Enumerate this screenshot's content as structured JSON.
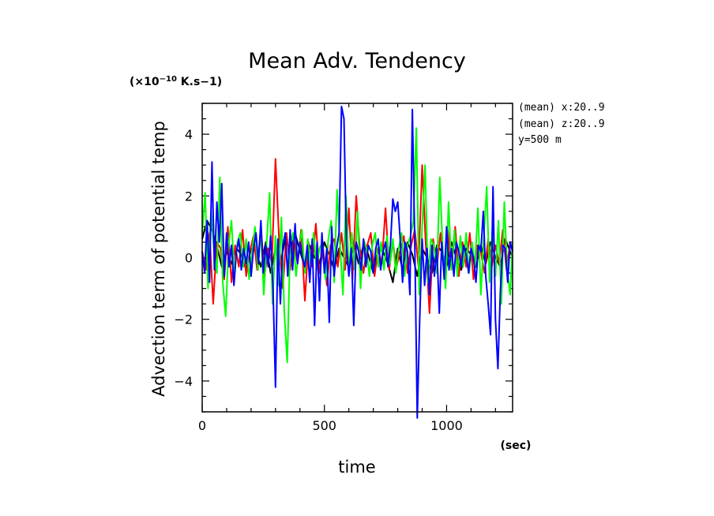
{
  "chart_data": {
    "type": "line",
    "title": "Mean Adv. Tendency",
    "scale_label": "(×10",
    "scale_exp": "−10",
    "scale_unit": " K.s−1)",
    "xlabel": "time",
    "xunit": "(sec)",
    "ylabel": "Advection term of potential temp",
    "info": [
      "(mean) x:20..9",
      "(mean) z:20..9",
      "y=500 m"
    ],
    "xlim": [
      0,
      1270
    ],
    "ylim": [
      -5,
      5
    ],
    "xticks": [
      0,
      500,
      1000
    ],
    "xtick_labels": [
      "0",
      "500",
      "1000"
    ],
    "yticks": [
      -4,
      -2,
      0,
      2,
      4
    ],
    "ytick_labels": [
      "−4",
      "−2",
      "0",
      "2",
      "4"
    ],
    "grid": false,
    "series": [
      {
        "color": "#000000",
        "x": [
          0,
          20,
          40,
          60,
          80,
          100,
          120,
          140,
          160,
          180,
          200,
          220,
          240,
          260,
          280,
          300,
          320,
          340,
          360,
          380,
          400,
          420,
          440,
          460,
          480,
          500,
          520,
          540,
          560,
          580,
          600,
          620,
          640,
          660,
          680,
          700,
          720,
          740,
          760,
          780,
          800,
          820,
          840,
          860,
          880,
          900,
          920,
          940,
          960,
          980,
          1000,
          1020,
          1040,
          1060,
          1080,
          1100,
          1120,
          1140,
          1160,
          1180,
          1200,
          1220,
          1240,
          1260,
          1270
        ],
        "y": [
          0.6,
          1.2,
          0.9,
          0.4,
          -0.3,
          0.2,
          -0.2,
          0.3,
          0.1,
          -0.4,
          0.3,
          0.2,
          -0.3,
          0.5,
          -0.5,
          0.3,
          -0.2,
          0.6,
          0.2,
          0.8,
          0.2,
          -0.3,
          0.4,
          0.0,
          -0.2,
          0.5,
          0.1,
          -0.4,
          0.3,
          0.0,
          -0.3,
          0.5,
          -0.2,
          0.4,
          0.1,
          -0.5,
          0.3,
          0.2,
          -0.2,
          -0.8,
          0.3,
          -0.4,
          0.5,
          0.1,
          -0.6,
          0.3,
          0.0,
          -0.5,
          0.4,
          0.2,
          -0.3,
          0.5,
          0.0,
          -0.4,
          0.3,
          0.1,
          -0.3,
          0.4,
          -0.2,
          0.5,
          0.0,
          -0.3,
          0.6,
          0.2,
          0.0
        ]
      },
      {
        "color": "#ff0000",
        "x": [
          0,
          15,
          30,
          45,
          60,
          75,
          90,
          105,
          120,
          135,
          150,
          165,
          180,
          195,
          210,
          225,
          240,
          255,
          270,
          285,
          300,
          315,
          330,
          345,
          360,
          375,
          390,
          405,
          420,
          435,
          450,
          465,
          480,
          495,
          510,
          525,
          540,
          555,
          570,
          585,
          600,
          615,
          630,
          645,
          660,
          675,
          690,
          705,
          720,
          735,
          750,
          765,
          780,
          795,
          810,
          825,
          840,
          855,
          870,
          885,
          900,
          915,
          930,
          945,
          960,
          975,
          990,
          1005,
          1020,
          1035,
          1050,
          1065,
          1080,
          1095,
          1110,
          1125,
          1140,
          1155,
          1170,
          1185,
          1200,
          1215,
          1230,
          1245,
          1260,
          1270
        ],
        "y": [
          0.2,
          -0.4,
          0.8,
          -1.5,
          0.5,
          0.3,
          -0.7,
          1.0,
          -0.8,
          0.4,
          -0.3,
          0.9,
          -0.6,
          0.2,
          0.7,
          -0.4,
          1.0,
          -0.6,
          0.3,
          -0.2,
          3.2,
          0.5,
          -1.0,
          0.8,
          -0.4,
          0.6,
          -0.2,
          0.9,
          -1.4,
          0.5,
          -0.3,
          1.1,
          -0.5,
          0.3,
          -0.9,
          0.4,
          0.6,
          -0.3,
          0.8,
          -0.4,
          1.6,
          -0.7,
          2.0,
          0.3,
          -0.5,
          0.4,
          0.8,
          -0.6,
          0.3,
          -0.2,
          1.6,
          -0.4,
          0.5,
          -0.3,
          0.2,
          0.7,
          -0.5,
          0.4,
          0.9,
          -0.3,
          3.0,
          0.4,
          -1.8,
          0.6,
          -0.3,
          0.8,
          -0.5,
          0.9,
          -0.4,
          1.0,
          -0.6,
          0.5,
          -0.3,
          0.8,
          -0.7,
          0.4,
          0.2,
          -0.5,
          0.6,
          -0.3,
          0.4,
          -0.2,
          0.9,
          -0.4,
          0.5,
          0.2
        ]
      },
      {
        "color": "#00ff00",
        "x": [
          0,
          12,
          24,
          36,
          48,
          60,
          72,
          84,
          96,
          108,
          120,
          132,
          144,
          156,
          168,
          180,
          192,
          204,
          216,
          228,
          240,
          252,
          264,
          276,
          288,
          300,
          312,
          324,
          336,
          348,
          360,
          372,
          384,
          396,
          408,
          420,
          432,
          444,
          456,
          468,
          480,
          492,
          504,
          516,
          528,
          540,
          552,
          564,
          576,
          588,
          600,
          612,
          624,
          636,
          648,
          660,
          672,
          684,
          696,
          708,
          720,
          732,
          744,
          756,
          768,
          780,
          792,
          804,
          816,
          828,
          840,
          852,
          864,
          876,
          888,
          900,
          912,
          924,
          936,
          948,
          960,
          972,
          984,
          996,
          1008,
          1020,
          1032,
          1044,
          1056,
          1068,
          1080,
          1092,
          1104,
          1116,
          1128,
          1140,
          1152,
          1164,
          1176,
          1188,
          1200,
          1212,
          1224,
          1236,
          1248,
          1260,
          1270
        ],
        "y": [
          0.8,
          2.1,
          -1.0,
          1.5,
          0.3,
          -0.5,
          2.6,
          -0.8,
          -1.9,
          0.4,
          1.2,
          -0.6,
          0.5,
          0.8,
          -0.3,
          0.6,
          -0.7,
          0.2,
          1.0,
          -0.4,
          0.9,
          -1.2,
          0.5,
          2.1,
          -1.5,
          0.7,
          -0.9,
          1.3,
          -1.8,
          -3.4,
          0.4,
          0.8,
          -0.6,
          0.3,
          0.9,
          -0.5,
          0.6,
          -0.2,
          0.8,
          -0.4,
          0.3,
          0.5,
          -0.7,
          0.6,
          1.2,
          -0.8,
          2.2,
          0.4,
          -1.2,
          2.0,
          -0.5,
          0.8,
          -0.4,
          1.5,
          -1.0,
          0.6,
          0.3,
          -0.6,
          0.4,
          0.8,
          -0.3,
          0.5,
          -0.4,
          0.7,
          -0.2,
          0.6,
          -0.5,
          0.3,
          0.8,
          -0.6,
          0.4,
          0.7,
          1.2,
          4.2,
          -1.2,
          1.0,
          3.0,
          -0.8,
          0.6,
          0.4,
          -0.5,
          2.6,
          0.3,
          -1.0,
          1.8,
          -0.4,
          0.9,
          -0.6,
          0.7,
          -0.3,
          0.8,
          -0.5,
          0.5,
          -0.3,
          1.6,
          -1.2,
          0.6,
          2.3,
          -0.8,
          1.0,
          -0.6,
          1.2,
          -1.5,
          1.8,
          -0.4,
          -1.2,
          0.5
        ]
      },
      {
        "color": "#0000ff",
        "x": [
          0,
          10,
          20,
          30,
          40,
          50,
          60,
          70,
          80,
          90,
          100,
          110,
          120,
          130,
          140,
          150,
          160,
          170,
          180,
          190,
          200,
          210,
          220,
          230,
          240,
          250,
          260,
          270,
          280,
          290,
          300,
          310,
          320,
          330,
          340,
          350,
          360,
          370,
          380,
          390,
          400,
          410,
          420,
          430,
          440,
          450,
          460,
          470,
          480,
          490,
          500,
          510,
          520,
          530,
          540,
          550,
          560,
          570,
          580,
          590,
          600,
          610,
          620,
          630,
          640,
          650,
          660,
          670,
          680,
          690,
          700,
          710,
          720,
          730,
          740,
          750,
          760,
          770,
          780,
          790,
          800,
          810,
          820,
          830,
          840,
          850,
          860,
          870,
          880,
          890,
          900,
          910,
          920,
          930,
          940,
          950,
          960,
          970,
          980,
          990,
          1000,
          1010,
          1020,
          1030,
          1040,
          1050,
          1060,
          1070,
          1080,
          1090,
          1100,
          1110,
          1120,
          1130,
          1140,
          1150,
          1160,
          1170,
          1180,
          1190,
          1200,
          1210,
          1220,
          1230,
          1240,
          1250,
          1260,
          1270
        ],
        "y": [
          0.2,
          -0.5,
          1.2,
          -0.8,
          3.1,
          -0.4,
          1.8,
          0.5,
          2.4,
          -0.6,
          0.8,
          -0.3,
          0.4,
          -0.9,
          0.2,
          0.6,
          -0.4,
          0.3,
          -0.2,
          0.5,
          -0.6,
          0.3,
          0.8,
          -0.2,
          1.2,
          -0.5,
          0.4,
          -0.3,
          0.7,
          -1.0,
          -4.2,
          0.6,
          -1.5,
          0.4,
          0.8,
          -0.6,
          0.9,
          -0.4,
          1.1,
          -0.2,
          0.5,
          0.0,
          -0.3,
          0.4,
          -0.8,
          0.6,
          -2.2,
          0.5,
          -1.4,
          0.8,
          -0.5,
          0.3,
          -2.1,
          1.0,
          -0.6,
          0.3,
          0.8,
          4.9,
          4.5,
          0.4,
          -0.6,
          0.3,
          -2.2,
          0.5,
          0.2,
          -0.4,
          0.6,
          -0.3,
          0.4,
          0.2,
          -0.5,
          0.3,
          0.6,
          -0.4,
          0.2,
          0.5,
          -0.3,
          0.4,
          1.9,
          1.5,
          1.8,
          0.6,
          -0.8,
          0.5,
          0.2,
          -1.2,
          4.8,
          0.4,
          -5.2,
          -2.0,
          0.6,
          -0.9,
          0.3,
          -1.2,
          0.4,
          -0.6,
          0.3,
          -1.8,
          0.5,
          -0.7,
          1.0,
          -0.4,
          0.3,
          -0.6,
          0.5,
          0.2,
          -0.3,
          0.4,
          0.1,
          -0.5,
          0.3,
          0.0,
          -0.8,
          0.4,
          0.2,
          1.5,
          -0.6,
          -1.5,
          -2.5,
          2.3,
          -2.0,
          -3.6,
          -1.1,
          0.4,
          0.3,
          -0.8,
          0.5,
          0.2
        ]
      }
    ]
  }
}
